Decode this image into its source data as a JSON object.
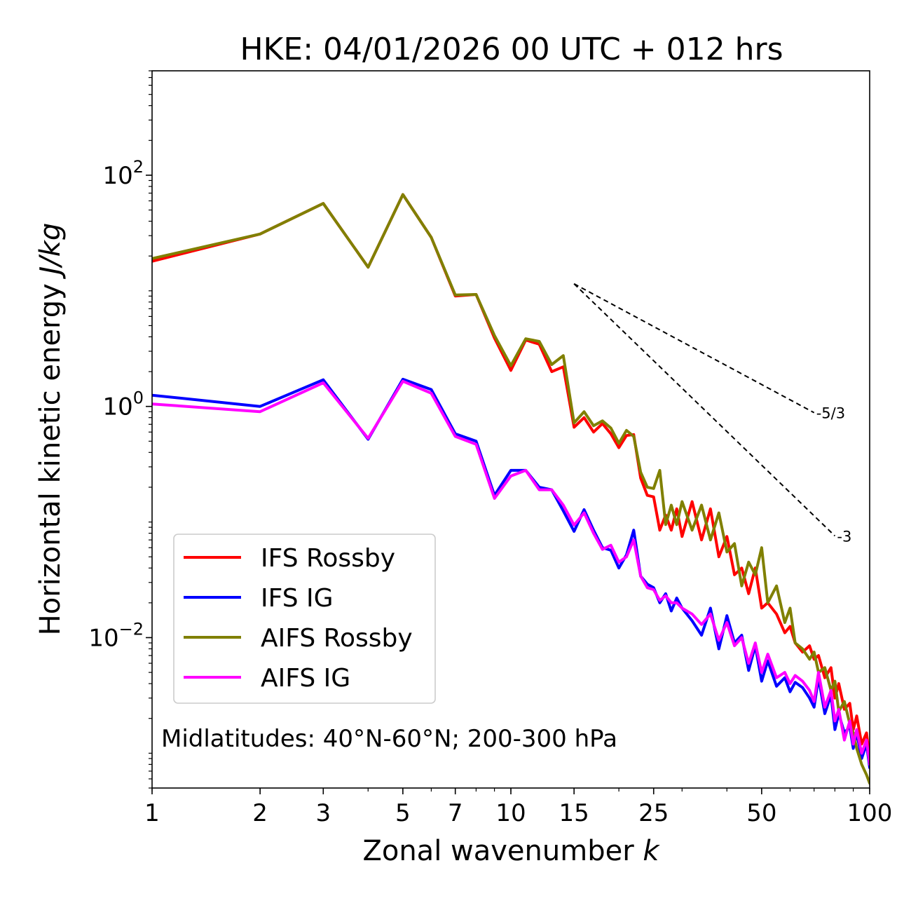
{
  "chart_data": {
    "type": "line",
    "title": "HKE: 04/01/2026 00 UTC + 012 hrs",
    "xlabel": "Zonal wavenumber",
    "xlabel_var": "k",
    "ylabel": "Horizontal kinetic energy",
    "ylabel_units": "J/kg",
    "xscale": "log",
    "yscale": "log",
    "xlim": [
      1,
      100
    ],
    "ylim": [
      0.0005,
      800
    ],
    "xticks": [
      1,
      2,
      3,
      5,
      7,
      10,
      15,
      25,
      50,
      100
    ],
    "xtick_labels": [
      "1",
      "2",
      "3",
      "5",
      "7",
      "10",
      "15",
      "25",
      "50",
      "100"
    ],
    "yticks": [
      {
        "value": 100,
        "base": "10",
        "exp": "2"
      },
      {
        "value": 1,
        "base": "10",
        "exp": "0"
      },
      {
        "value": 0.01,
        "base": "10",
        "exp": "−2"
      }
    ],
    "annotation": "Midlatitudes: 40°N-60°N; 200-300 hPa",
    "legend_position": "lower-left",
    "reference_slopes": [
      {
        "label": "-5/3",
        "slope": -1.6667,
        "k_start": 15,
        "k_end": 70,
        "e_start": 11.5
      },
      {
        "label": "-3",
        "slope": -3,
        "k_start": 15,
        "k_end": 80,
        "e_start": 11.5
      }
    ],
    "series": [
      {
        "name": "IFS Rossby",
        "color": "#ff0000",
        "x": [
          1,
          2,
          3,
          4,
          5,
          6,
          7,
          8,
          9,
          10,
          11,
          12,
          13,
          14,
          15,
          16,
          17,
          18,
          19,
          20,
          21,
          22,
          23,
          24,
          25,
          26,
          27,
          28,
          29,
          30,
          32,
          34,
          36,
          38,
          40,
          42,
          44,
          46,
          48,
          50,
          52,
          55,
          58,
          60,
          62,
          65,
          68,
          70,
          72,
          75,
          78,
          80,
          82,
          85,
          88,
          90,
          92,
          95,
          98,
          100
        ],
        "y": [
          18,
          31,
          57,
          16,
          68,
          29,
          9.0,
          9.3,
          3.9,
          2.05,
          3.75,
          3.45,
          2.0,
          2.2,
          0.66,
          0.8,
          0.6,
          0.71,
          0.58,
          0.44,
          0.56,
          0.57,
          0.24,
          0.17,
          0.165,
          0.085,
          0.115,
          0.085,
          0.13,
          0.075,
          0.15,
          0.07,
          0.13,
          0.05,
          0.075,
          0.035,
          0.04,
          0.024,
          0.04,
          0.018,
          0.02,
          0.016,
          0.011,
          0.0125,
          0.009,
          0.0075,
          0.0085,
          0.0065,
          0.007,
          0.0045,
          0.0055,
          0.003,
          0.004,
          0.0024,
          0.0027,
          0.0016,
          0.0021,
          0.0012,
          0.0015,
          0.0009
        ]
      },
      {
        "name": "IFS IG",
        "color": "#0000ff",
        "x": [
          1,
          2,
          3,
          4,
          5,
          6,
          7,
          8,
          9,
          10,
          11,
          12,
          13,
          14,
          15,
          16,
          17,
          18,
          19,
          20,
          21,
          22,
          23,
          24,
          25,
          26,
          27,
          28,
          29,
          30,
          32,
          34,
          36,
          38,
          40,
          42,
          44,
          46,
          48,
          50,
          52,
          55,
          58,
          60,
          62,
          65,
          68,
          70,
          72,
          75,
          78,
          80,
          82,
          85,
          88,
          90,
          92,
          95,
          98,
          100
        ],
        "y": [
          1.25,
          1.0,
          1.7,
          0.52,
          1.72,
          1.4,
          0.58,
          0.5,
          0.17,
          0.28,
          0.28,
          0.2,
          0.19,
          0.125,
          0.083,
          0.128,
          0.085,
          0.06,
          0.057,
          0.04,
          0.052,
          0.085,
          0.034,
          0.029,
          0.027,
          0.02,
          0.024,
          0.017,
          0.022,
          0.018,
          0.014,
          0.0105,
          0.018,
          0.008,
          0.0155,
          0.009,
          0.0105,
          0.0052,
          0.0085,
          0.0042,
          0.0063,
          0.0038,
          0.0045,
          0.0034,
          0.0041,
          0.0037,
          0.003,
          0.0025,
          0.0045,
          0.0022,
          0.0032,
          0.0016,
          0.0022,
          0.0015,
          0.0017,
          0.0011,
          0.0015,
          0.0009,
          0.0012,
          0.00075
        ]
      },
      {
        "name": "AIFS Rossby",
        "color": "#808000",
        "x": [
          1,
          2,
          3,
          4,
          5,
          6,
          7,
          8,
          9,
          10,
          11,
          12,
          13,
          14,
          15,
          16,
          17,
          18,
          19,
          20,
          21,
          22,
          23,
          24,
          25,
          26,
          27,
          28,
          29,
          30,
          32,
          34,
          36,
          38,
          40,
          42,
          44,
          46,
          48,
          50,
          52,
          55,
          58,
          60,
          62,
          65,
          68,
          70,
          72,
          75,
          78,
          80,
          82,
          85,
          88,
          90,
          92,
          95,
          98,
          100
        ],
        "y": [
          19,
          31,
          57,
          16,
          68,
          29,
          9.2,
          9.3,
          4.1,
          2.25,
          3.85,
          3.65,
          2.3,
          2.75,
          0.72,
          0.9,
          0.68,
          0.75,
          0.65,
          0.48,
          0.62,
          0.55,
          0.27,
          0.2,
          0.195,
          0.28,
          0.095,
          0.14,
          0.095,
          0.15,
          0.085,
          0.14,
          0.07,
          0.12,
          0.055,
          0.065,
          0.028,
          0.045,
          0.035,
          0.06,
          0.02,
          0.028,
          0.0135,
          0.018,
          0.009,
          0.008,
          0.0065,
          0.0075,
          0.005,
          0.0055,
          0.0035,
          0.0042,
          0.0023,
          0.0028,
          0.0018,
          0.0015,
          0.0011,
          0.0008,
          0.00065,
          0.00055
        ]
      },
      {
        "name": "AIFS IG",
        "color": "#ff00ff",
        "x": [
          1,
          2,
          3,
          4,
          5,
          6,
          7,
          8,
          9,
          10,
          11,
          12,
          13,
          14,
          15,
          16,
          17,
          18,
          19,
          20,
          21,
          22,
          23,
          24,
          25,
          26,
          27,
          28,
          29,
          30,
          32,
          34,
          36,
          38,
          40,
          42,
          44,
          46,
          48,
          50,
          52,
          55,
          58,
          60,
          62,
          65,
          68,
          70,
          72,
          75,
          78,
          80,
          82,
          85,
          88,
          90,
          92,
          95,
          98,
          100
        ],
        "y": [
          1.05,
          0.9,
          1.6,
          0.53,
          1.65,
          1.3,
          0.55,
          0.47,
          0.16,
          0.25,
          0.28,
          0.19,
          0.19,
          0.14,
          0.094,
          0.12,
          0.08,
          0.058,
          0.063,
          0.045,
          0.05,
          0.07,
          0.034,
          0.027,
          0.026,
          0.021,
          0.023,
          0.02,
          0.02,
          0.018,
          0.016,
          0.013,
          0.016,
          0.0095,
          0.0135,
          0.0085,
          0.01,
          0.006,
          0.009,
          0.005,
          0.0072,
          0.0045,
          0.005,
          0.004,
          0.0047,
          0.0042,
          0.0035,
          0.0028,
          0.005,
          0.0025,
          0.0035,
          0.0019,
          0.0024,
          0.0013,
          0.0019,
          0.0012,
          0.0016,
          0.001,
          0.0013,
          0.0008
        ]
      }
    ]
  }
}
